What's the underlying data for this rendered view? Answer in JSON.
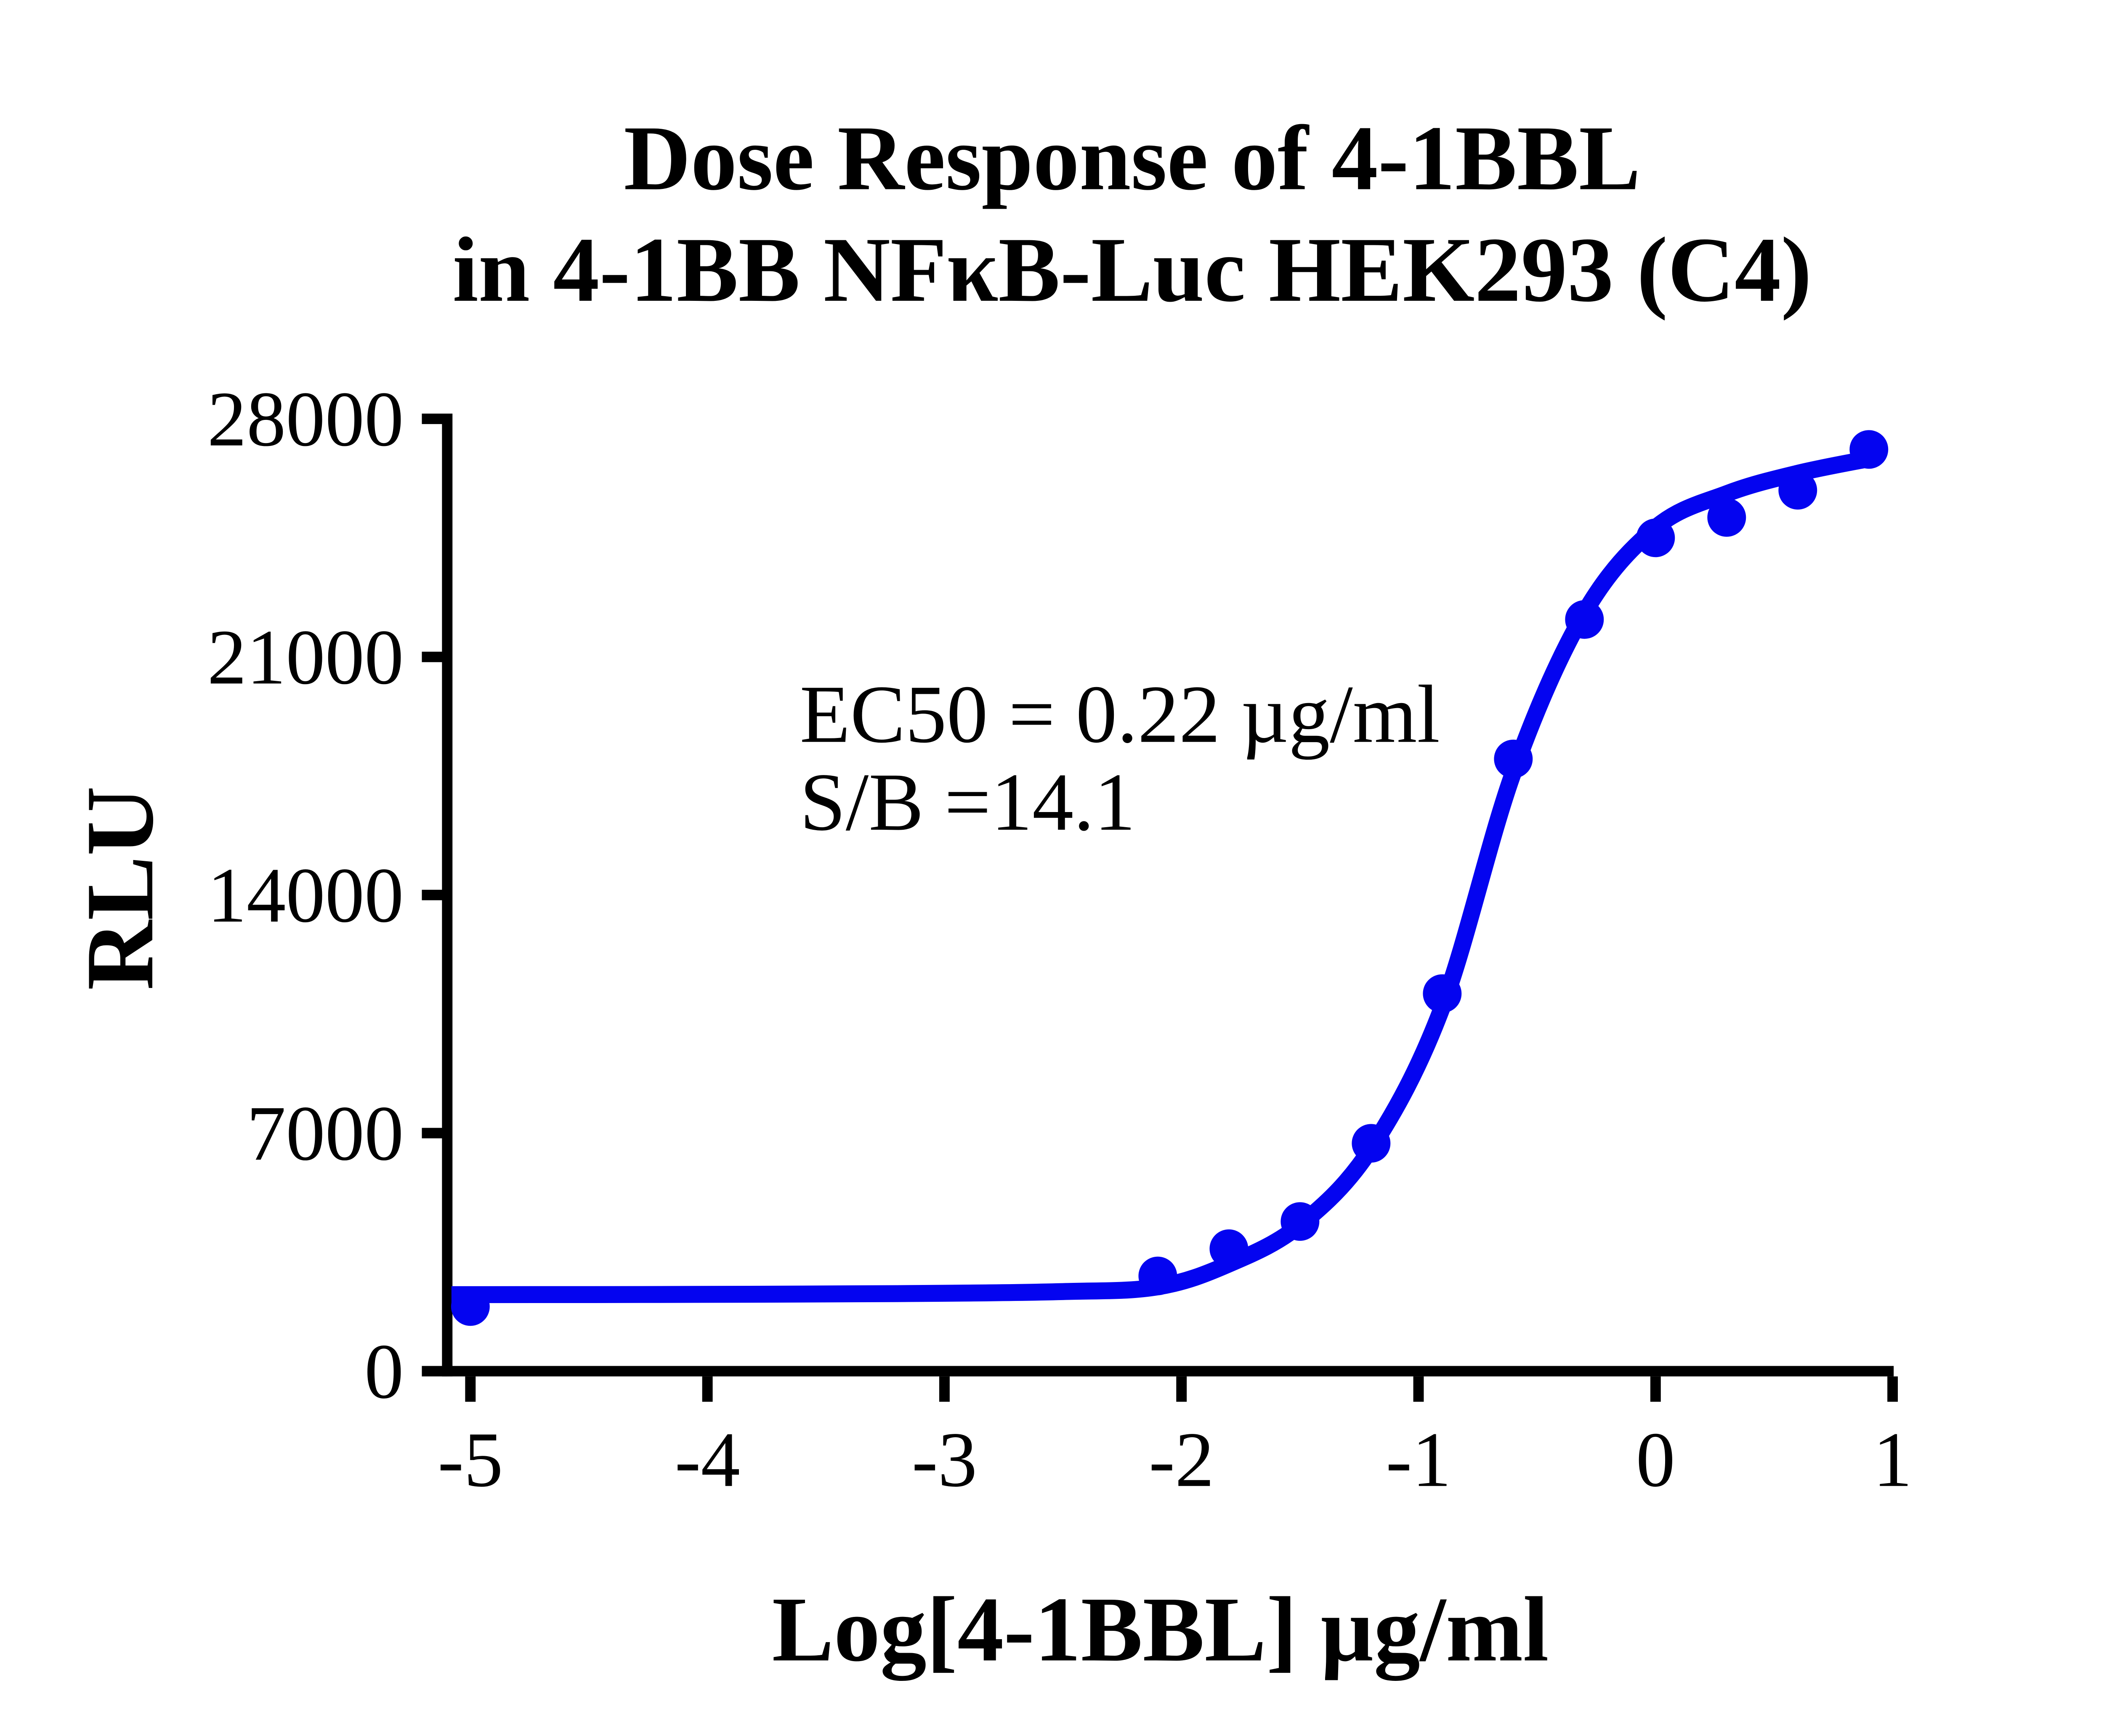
{
  "chart": {
    "title_line1": "Dose Response of 4-1BBL",
    "title_line2": "in 4-1BB NFκB-Luc HEK293 (C4)",
    "y_axis_label": "RLU",
    "x_axis_label": "Log[4-1BBL] µg/ml",
    "annotations": {
      "ec50": "EC50 = 0.22 µg/ml",
      "s_over_b": "S/B =14.1"
    }
  },
  "chart_data": {
    "type": "scatter",
    "title": "Dose Response of 4-1BBL in 4-1BB NFκB-Luc HEK293 (C4)",
    "xlabel": "Log[4-1BBL] µg/ml",
    "ylabel": "RLU",
    "x_ticks": [
      -5,
      -4,
      -3,
      -2,
      -1,
      0,
      1
    ],
    "x_tick_labels": [
      "-5",
      "-4",
      "-3",
      "-2",
      "-1",
      "0",
      "1"
    ],
    "y_ticks": [
      0,
      7000,
      14000,
      21000,
      28000
    ],
    "y_tick_labels": [
      "0",
      "7000",
      "14000",
      "21000",
      "28000"
    ],
    "xlim": [
      -5.1,
      1.0
    ],
    "ylim": [
      0,
      28000
    ],
    "grid": false,
    "legend": null,
    "series": [
      {
        "name": "4-1BBL",
        "marker": "circle",
        "color": "#0404F0",
        "x": [
          -5.0,
          -2.1,
          -1.8,
          -1.5,
          -1.2,
          -0.9,
          -0.6,
          -0.3,
          0.0,
          0.3,
          0.6,
          0.9
        ],
        "y": [
          1900,
          2800,
          3600,
          4400,
          6700,
          11100,
          18000,
          22100,
          24500,
          25100,
          25900,
          27100
        ]
      }
    ],
    "fit_curve": {
      "model": "sigmoidal dose-response (4PL fit)",
      "ec50_ug_per_ml": 0.22,
      "log_ec50": -0.66,
      "s_over_b": 14.1,
      "bottom_plateau_rlu": 2250,
      "top_plateau_rlu": 26850,
      "anchors_log_x": [
        -5.08,
        -4.2,
        -3.2,
        -2.5,
        -2.1,
        -1.8,
        -1.5,
        -1.2,
        -0.9,
        -0.6,
        -0.3,
        0.0,
        0.3,
        0.6,
        0.92
      ],
      "anchors_rlu": [
        2250,
        2255,
        2280,
        2340,
        2480,
        3150,
        4300,
        6550,
        10700,
        17600,
        22300,
        24800,
        25800,
        26400,
        26850
      ]
    },
    "colors": {
      "curve": "#0404F0",
      "axis": "#000000",
      "text": "#000000",
      "background": "#FFFFFF"
    }
  }
}
